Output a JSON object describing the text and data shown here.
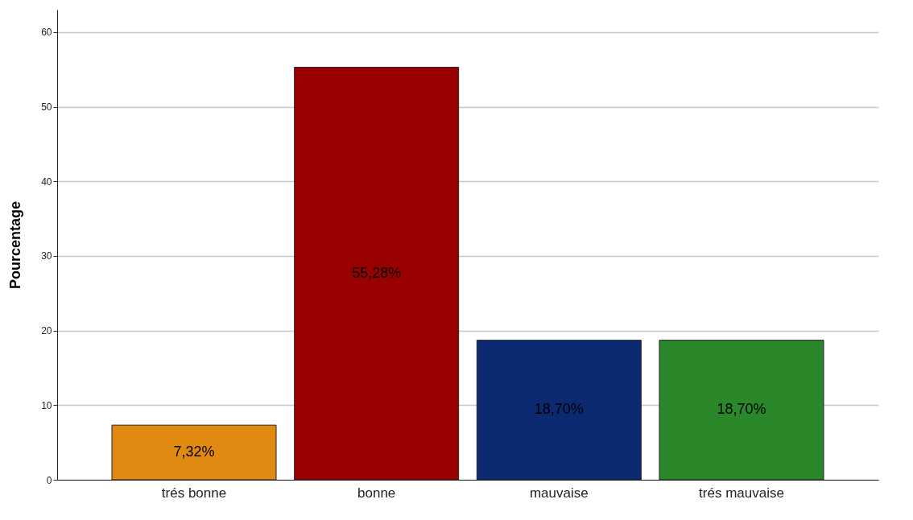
{
  "chart_data": {
    "type": "bar",
    "ylabel": "Pourcentage",
    "categories": [
      "trés bonne",
      "bonne",
      "mauvaise",
      "trés mauvaise"
    ],
    "values": [
      7.32,
      55.28,
      18.7,
      18.7
    ],
    "value_labels": [
      "7,32%",
      "55,28%",
      "18,70%",
      "18,70%"
    ],
    "colors": [
      "#e08a12",
      "#990000",
      "#0b2a72",
      "#2a882a"
    ],
    "ylim": [
      0,
      63
    ],
    "yticks": [
      0,
      10,
      20,
      30,
      40,
      50,
      60
    ],
    "grid": "y",
    "legend": false
  }
}
